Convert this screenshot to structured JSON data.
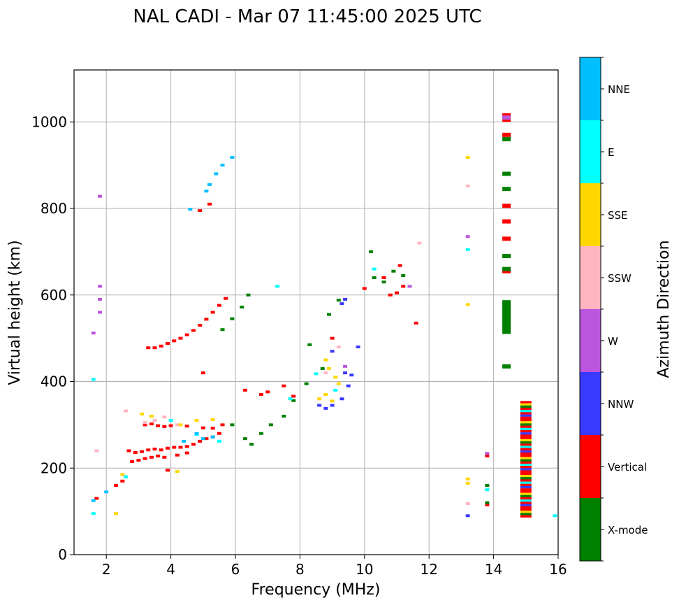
{
  "chart_data": {
    "type": "scatter",
    "title": "NAL CADI - Mar 07 11:45:00 2025 UTC",
    "xlabel": "Frequency (MHz)",
    "ylabel": "Virtual height (km)",
    "xlim": [
      1,
      16
    ],
    "ylim": [
      0,
      1120
    ],
    "xticks": [
      2,
      4,
      6,
      8,
      10,
      12,
      14,
      16
    ],
    "yticks": [
      0,
      200,
      400,
      600,
      800,
      1000
    ],
    "grid": true,
    "colorbar": {
      "label": "Azimuth Direction",
      "categories": [
        {
          "name": "X-mode",
          "color": "#008000"
        },
        {
          "name": "Vertical",
          "color": "#ff0000"
        },
        {
          "name": "NNW",
          "color": "#3a3aff"
        },
        {
          "name": "W",
          "color": "#bb55dd"
        },
        {
          "name": "SSW",
          "color": "#ffb6c1"
        },
        {
          "name": "SSE",
          "color": "#ffd700"
        },
        {
          "name": "E",
          "color": "#00ffff"
        },
        {
          "name": "NNE",
          "color": "#00bfff"
        }
      ]
    },
    "series": [
      {
        "name": "Vertical",
        "traces": [
          [
            3.3,
            478
          ],
          [
            3.5,
            478
          ],
          [
            3.7,
            482
          ],
          [
            3.9,
            488
          ],
          [
            4.1,
            494
          ],
          [
            4.3,
            500
          ],
          [
            4.5,
            508
          ],
          [
            4.7,
            518
          ],
          [
            4.9,
            530
          ],
          [
            5.1,
            544
          ],
          [
            5.3,
            560
          ],
          [
            5.5,
            576
          ],
          [
            5.7,
            592
          ],
          [
            2.7,
            240
          ],
          [
            2.9,
            236
          ],
          [
            3.1,
            238
          ],
          [
            3.3,
            242
          ],
          [
            3.5,
            244
          ],
          [
            3.7,
            242
          ],
          [
            3.9,
            246
          ],
          [
            4.1,
            248
          ],
          [
            4.3,
            248
          ],
          [
            4.5,
            250
          ],
          [
            4.7,
            255
          ],
          [
            4.9,
            262
          ],
          [
            5.1,
            268
          ],
          [
            5.3,
            272
          ],
          [
            5.5,
            280
          ],
          [
            2.8,
            215
          ],
          [
            3.0,
            218
          ],
          [
            3.2,
            222
          ],
          [
            3.4,
            225
          ],
          [
            3.6,
            228
          ],
          [
            3.8,
            225
          ],
          [
            4.2,
            230
          ],
          [
            4.5,
            235
          ],
          [
            3.2,
            300
          ],
          [
            3.4,
            302
          ],
          [
            3.6,
            298
          ],
          [
            3.8,
            296
          ],
          [
            4.0,
            298
          ],
          [
            4.5,
            297
          ],
          [
            5.0,
            293
          ],
          [
            5.3,
            292
          ],
          [
            5.6,
            300
          ],
          [
            1.7,
            130
          ],
          [
            2.3,
            160
          ],
          [
            2.5,
            170
          ],
          [
            3.9,
            195
          ],
          [
            5.0,
            420
          ],
          [
            4.9,
            795
          ],
          [
            5.2,
            810
          ],
          [
            6.3,
            380
          ],
          [
            6.8,
            370
          ],
          [
            7.0,
            376
          ],
          [
            7.5,
            390
          ],
          [
            7.8,
            366
          ],
          [
            9.0,
            500
          ],
          [
            10.0,
            615
          ],
          [
            10.6,
            640
          ],
          [
            10.8,
            600
          ],
          [
            11.0,
            605
          ],
          [
            11.2,
            620
          ],
          [
            11.1,
            668
          ],
          [
            11.6,
            535
          ],
          [
            13.8,
            228
          ],
          [
            13.8,
            115
          ],
          [
            14.4,
            1015
          ],
          [
            14.4,
            1005
          ],
          [
            14.4,
            970
          ],
          [
            14.4,
            806
          ],
          [
            14.4,
            770
          ],
          [
            14.4,
            730
          ],
          [
            14.4,
            655
          ]
        ]
      },
      {
        "name": "X-mode",
        "traces": [
          [
            5.6,
            520
          ],
          [
            5.9,
            545
          ],
          [
            6.2,
            572
          ],
          [
            6.4,
            600
          ],
          [
            5.9,
            300
          ],
          [
            6.3,
            268
          ],
          [
            6.5,
            255
          ],
          [
            6.8,
            280
          ],
          [
            7.1,
            300
          ],
          [
            7.5,
            320
          ],
          [
            7.8,
            356
          ],
          [
            8.2,
            395
          ],
          [
            8.7,
            430
          ],
          [
            8.3,
            485
          ],
          [
            8.9,
            555
          ],
          [
            9.2,
            588
          ],
          [
            10.3,
            640
          ],
          [
            10.6,
            630
          ],
          [
            10.9,
            655
          ],
          [
            11.2,
            645
          ],
          [
            10.2,
            700
          ],
          [
            13.8,
            160
          ],
          [
            13.8,
            120
          ],
          [
            14.4,
            550
          ],
          [
            14.4,
            575
          ],
          [
            14.4,
            530
          ],
          [
            14.4,
            845
          ],
          [
            14.4,
            880
          ],
          [
            14.4,
            960
          ],
          [
            14.4,
            690
          ],
          [
            14.4,
            660
          ],
          [
            14.4,
            435
          ]
        ]
      },
      {
        "name": "NNW",
        "traces": [
          [
            8.6,
            345
          ],
          [
            8.8,
            338
          ],
          [
            9.0,
            345
          ],
          [
            9.3,
            360
          ],
          [
            9.5,
            390
          ],
          [
            9.4,
            420
          ],
          [
            9.6,
            415
          ],
          [
            9.0,
            470
          ],
          [
            9.3,
            580
          ],
          [
            9.4,
            590
          ],
          [
            9.8,
            480
          ],
          [
            13.2,
            90
          ]
        ]
      },
      {
        "name": "W",
        "traces": [
          [
            1.6,
            512
          ],
          [
            1.8,
            620
          ],
          [
            1.8,
            590
          ],
          [
            1.8,
            560
          ],
          [
            1.8,
            828
          ],
          [
            13.2,
            735
          ],
          [
            9.4,
            435
          ],
          [
            11.4,
            620
          ],
          [
            13.8,
            234
          ],
          [
            14.4,
            1010
          ]
        ]
      },
      {
        "name": "SSW",
        "traces": [
          [
            1.7,
            240
          ],
          [
            2.6,
            332
          ],
          [
            3.2,
            305
          ],
          [
            3.5,
            310
          ],
          [
            3.8,
            318
          ],
          [
            4.2,
            300
          ],
          [
            8.8,
            420
          ],
          [
            9.2,
            480
          ],
          [
            13.2,
            118
          ],
          [
            13.2,
            852
          ],
          [
            11.7,
            720
          ]
        ]
      },
      {
        "name": "SSE",
        "traces": [
          [
            2.3,
            95
          ],
          [
            2.5,
            185
          ],
          [
            3.1,
            325
          ],
          [
            3.4,
            320
          ],
          [
            4.3,
            300
          ],
          [
            4.8,
            310
          ],
          [
            5.3,
            312
          ],
          [
            4.2,
            192
          ],
          [
            8.6,
            360
          ],
          [
            8.8,
            370
          ],
          [
            9.0,
            355
          ],
          [
            9.2,
            395
          ],
          [
            8.9,
            430
          ],
          [
            9.1,
            410
          ],
          [
            8.8,
            450
          ],
          [
            13.2,
            918
          ],
          [
            13.2,
            578
          ],
          [
            13.2,
            175
          ],
          [
            13.2,
            165
          ]
        ]
      },
      {
        "name": "E",
        "traces": [
          [
            1.6,
            405
          ],
          [
            1.6,
            95
          ],
          [
            2.6,
            180
          ],
          [
            4.0,
            310
          ],
          [
            4.8,
            278
          ],
          [
            5.5,
            262
          ],
          [
            7.3,
            620
          ],
          [
            7.7,
            360
          ],
          [
            8.5,
            418
          ],
          [
            9.1,
            380
          ],
          [
            10.3,
            660
          ],
          [
            13.2,
            705
          ],
          [
            13.8,
            150
          ],
          [
            15.9,
            90
          ]
        ]
      },
      {
        "name": "NNE",
        "traces": [
          [
            4.8,
            280
          ],
          [
            5.0,
            268
          ],
          [
            5.3,
            272
          ],
          [
            5.1,
            840
          ],
          [
            5.2,
            855
          ],
          [
            5.4,
            880
          ],
          [
            5.6,
            900
          ],
          [
            5.9,
            918
          ],
          [
            4.6,
            798
          ],
          [
            1.6,
            125
          ],
          [
            2.0,
            145
          ],
          [
            4.4,
            262
          ]
        ]
      },
      {
        "name": "Mixed column 15 MHz",
        "traces": [
          [
            15.0,
            90
          ],
          [
            15.0,
            355
          ]
        ]
      }
    ]
  }
}
